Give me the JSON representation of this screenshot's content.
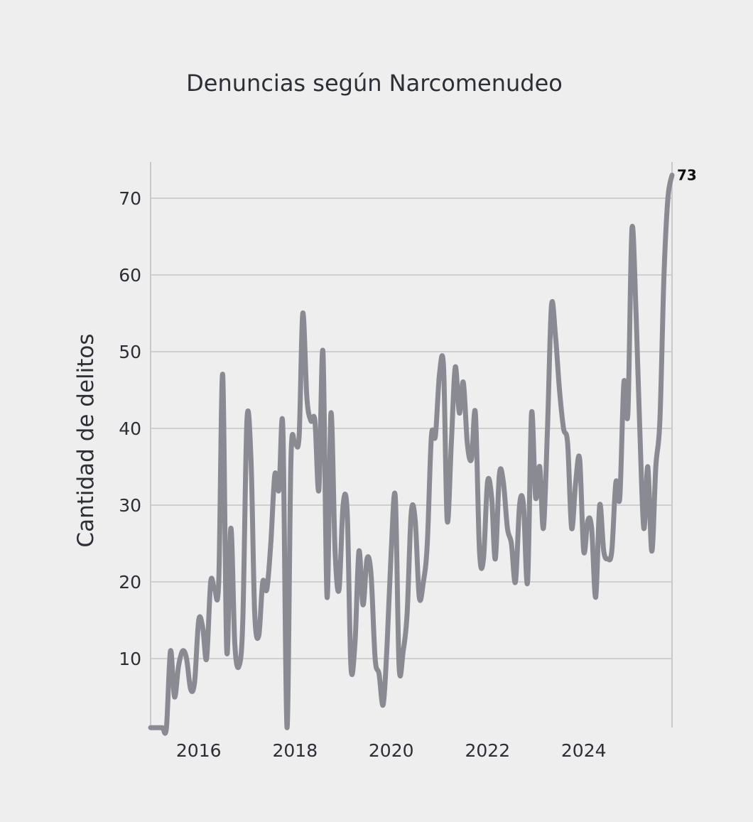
{
  "chart_data": {
    "type": "line",
    "title": "Denuncias según Narcomenudeo",
    "xlabel": "",
    "ylabel": "Cantidad de delitos",
    "ylim": [
      1,
      75
    ],
    "yticks": [
      10,
      20,
      30,
      40,
      50,
      60,
      70
    ],
    "xlim": [
      "2015-01-01",
      "2025-11-01"
    ],
    "xticks": [
      {
        "label": "2016",
        "date": "2016-01-01"
      },
      {
        "label": "2018",
        "date": "2018-01-01"
      },
      {
        "label": "2020",
        "date": "2020-01-01"
      },
      {
        "label": "2022",
        "date": "2022-01-01"
      },
      {
        "label": "2024",
        "date": "2024-01-01"
      }
    ],
    "grid": true,
    "end_label": "73",
    "color": "#8a8a93",
    "series": [
      {
        "x": [
          "2015-01-01",
          "2015-02-01",
          "2015-03-01",
          "2015-04-01",
          "2015-05-01",
          "2015-06-01",
          "2015-07-01",
          "2015-08-01",
          "2015-09-01",
          "2015-10-01",
          "2015-11-01",
          "2015-12-01",
          "2016-01-01",
          "2016-02-01",
          "2016-03-01",
          "2016-04-01",
          "2016-05-01",
          "2016-06-01",
          "2016-07-01",
          "2016-08-01",
          "2016-09-01",
          "2016-10-01",
          "2016-11-01",
          "2016-12-01",
          "2017-01-01",
          "2017-02-01",
          "2017-03-01",
          "2017-04-01",
          "2017-05-01",
          "2017-06-01",
          "2017-07-01",
          "2017-08-01",
          "2017-09-01",
          "2017-10-01",
          "2017-11-01",
          "2017-12-01",
          "2018-01-01",
          "2018-02-01",
          "2018-03-01",
          "2018-04-01",
          "2018-05-01",
          "2018-06-01",
          "2018-07-01",
          "2018-08-01",
          "2018-09-01",
          "2018-10-01",
          "2018-11-01",
          "2018-12-01",
          "2019-01-01",
          "2019-02-01",
          "2019-03-01",
          "2019-04-01",
          "2019-05-01",
          "2019-06-01",
          "2019-07-01",
          "2019-08-01",
          "2019-09-01",
          "2019-10-01",
          "2019-11-01",
          "2019-12-01",
          "2020-01-01",
          "2020-02-01",
          "2020-03-01",
          "2020-04-01",
          "2020-05-01",
          "2020-06-01",
          "2020-07-01",
          "2020-08-01",
          "2020-09-01",
          "2020-10-01",
          "2020-11-01",
          "2020-12-01",
          "2021-01-01",
          "2021-02-01",
          "2021-03-01",
          "2021-04-01",
          "2021-05-01",
          "2021-06-01",
          "2021-07-01",
          "2021-08-01",
          "2021-09-01",
          "2021-10-01",
          "2021-11-01",
          "2021-12-01",
          "2022-01-01",
          "2022-02-01",
          "2022-03-01",
          "2022-04-01",
          "2022-05-01",
          "2022-06-01",
          "2022-07-01",
          "2022-08-01",
          "2022-09-01",
          "2022-10-01",
          "2022-11-01",
          "2022-12-01",
          "2023-01-01",
          "2023-02-01",
          "2023-03-01",
          "2023-04-01",
          "2023-05-01",
          "2023-06-01",
          "2023-07-01",
          "2023-08-01",
          "2023-09-01",
          "2023-10-01",
          "2023-11-01",
          "2023-12-01",
          "2024-01-01",
          "2024-02-01",
          "2024-03-01",
          "2024-04-01",
          "2024-05-01",
          "2024-06-01",
          "2024-07-01",
          "2024-08-01",
          "2024-09-01",
          "2024-10-01",
          "2024-11-01",
          "2024-12-01",
          "2025-01-01",
          "2025-02-01",
          "2025-03-01",
          "2025-04-01",
          "2025-05-01",
          "2025-06-01",
          "2025-07-01",
          "2025-08-01",
          "2025-09-01",
          "2025-10-01",
          "2025-11-01"
        ],
        "y": [
          1,
          1,
          1,
          1,
          1,
          11,
          5,
          9,
          11,
          10,
          6,
          7,
          15,
          14,
          10,
          20,
          19,
          20,
          47,
          11,
          27,
          12,
          9,
          15,
          41,
          36,
          16,
          13,
          20,
          19,
          25,
          34,
          32,
          40,
          1,
          36,
          38,
          39,
          55,
          44,
          41,
          41,
          32,
          50,
          18,
          42,
          24,
          19,
          30,
          29,
          9,
          12,
          24,
          17,
          23,
          21,
          10,
          8,
          4,
          12,
          24,
          31,
          9,
          11,
          16,
          29,
          28,
          18,
          20,
          25,
          39,
          39,
          47,
          48,
          28,
          38,
          48,
          42,
          46,
          38,
          36,
          42,
          24,
          23,
          33,
          31,
          23,
          34,
          33,
          27,
          25,
          20,
          30,
          30,
          20,
          42,
          31,
          35,
          27,
          40,
          56,
          52,
          45,
          40,
          38,
          27,
          33,
          36,
          24,
          28,
          27,
          18,
          30,
          24,
          23,
          24,
          33,
          31,
          46,
          42,
          66,
          55,
          40,
          27,
          35,
          24,
          35,
          41,
          60,
          70,
          73
        ]
      }
    ]
  }
}
